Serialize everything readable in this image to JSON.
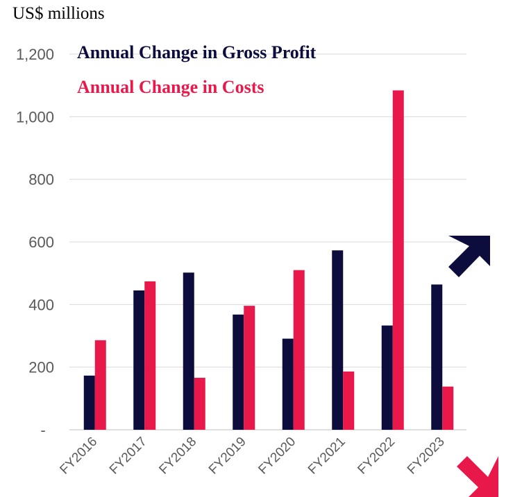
{
  "chart_data": {
    "type": "bar",
    "unit_label": "US$ millions",
    "categories": [
      "FY2016",
      "FY2017",
      "FY2018",
      "FY2019",
      "FY2020",
      "FY2021",
      "FY2022",
      "FY2023"
    ],
    "series": [
      {
        "name": "Annual Change in Gross Profit",
        "color": "#0d0d3d",
        "values": [
          173,
          445,
          502,
          368,
          291,
          573,
          333,
          464
        ]
      },
      {
        "name": "Annual Change in Costs",
        "color": "#e8194a",
        "values": [
          286,
          474,
          166,
          396,
          510,
          186,
          1084,
          138
        ]
      }
    ],
    "y_tick_labels": [
      "-",
      "200",
      "400",
      "600",
      "800",
      "1,000",
      "1,200"
    ],
    "ylim": [
      0,
      1200
    ],
    "grid": true,
    "legend_position": "top-left",
    "arrows": [
      {
        "direction": "up-right",
        "color": "#0d0d3d",
        "icon": "arrow-up-right-icon"
      },
      {
        "direction": "down-right",
        "color": "#e8194a",
        "icon": "arrow-down-right-icon"
      }
    ]
  }
}
